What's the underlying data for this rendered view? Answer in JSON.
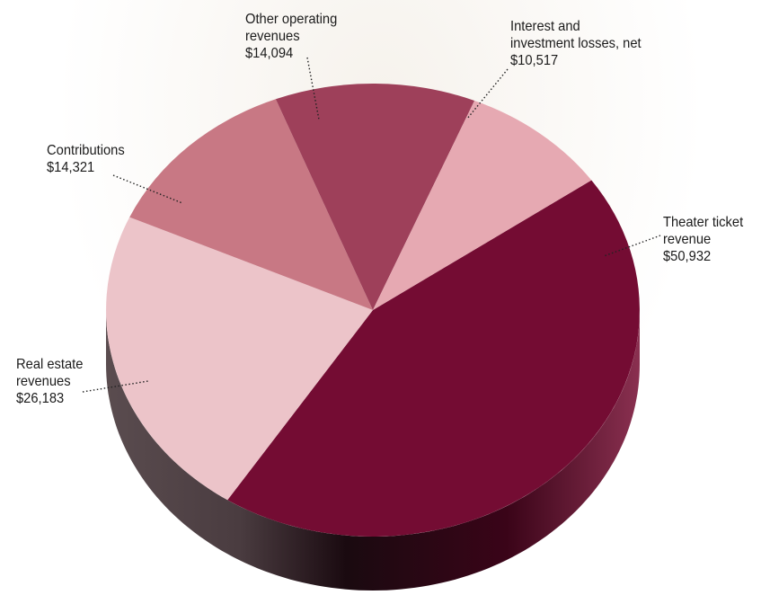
{
  "chart_data": {
    "type": "pie",
    "style": "3d",
    "title": "",
    "slices": [
      {
        "label_lines": [
          "Theater ticket",
          "revenue"
        ],
        "label": "Theater ticket revenue",
        "value": 50932,
        "value_text": "$50,932",
        "color": "#740c33"
      },
      {
        "label_lines": [
          "Real estate",
          "revenues"
        ],
        "label": "Real estate revenues",
        "value": 26183,
        "value_text": "$26,183",
        "color": "#ecc4c9"
      },
      {
        "label_lines": [
          "Contributions"
        ],
        "label": "Contributions",
        "value": 14321,
        "value_text": "$14,321",
        "color": "#c87884"
      },
      {
        "label_lines": [
          "Other operating",
          "revenues"
        ],
        "label": "Other operating revenues",
        "value": 14094,
        "value_text": "$14,094",
        "color": "#9e405a"
      },
      {
        "label_lines": [
          "Interest and",
          "investment losses, net"
        ],
        "label": "Interest and investment losses, net",
        "value": 10517,
        "value_text": "$10,517",
        "color": "#e6a9b2"
      }
    ]
  }
}
